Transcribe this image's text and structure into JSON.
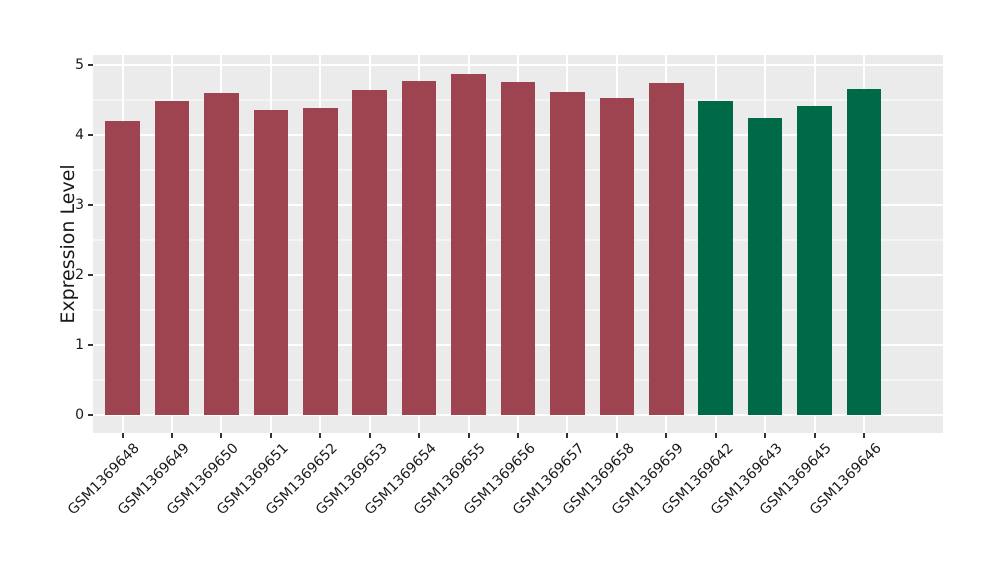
{
  "chart_data": {
    "type": "bar",
    "title": "",
    "xlabel": "",
    "ylabel": "Expression Level",
    "categories": [
      "GSM1369648",
      "GSM1369649",
      "GSM1369650",
      "GSM1369651",
      "GSM1369652",
      "GSM1369653",
      "GSM1369654",
      "GSM1369655",
      "GSM1369656",
      "GSM1369657",
      "GSM1369658",
      "GSM1369659",
      "GSM1369642",
      "GSM1369643",
      "GSM1369645",
      "GSM1369646"
    ],
    "values": [
      4.2,
      4.49,
      4.6,
      4.36,
      4.39,
      4.64,
      4.77,
      4.87,
      4.76,
      4.61,
      4.53,
      4.75,
      4.49,
      4.25,
      4.42,
      4.66
    ],
    "bar_groups": [
      "maroon",
      "maroon",
      "maroon",
      "maroon",
      "maroon",
      "maroon",
      "maroon",
      "maroon",
      "maroon",
      "maroon",
      "maroon",
      "maroon",
      "green",
      "green",
      "green",
      "green"
    ],
    "palette": {
      "maroon": "#9E4450",
      "green": "#006948"
    },
    "ylim": [
      0,
      5.15
    ],
    "yticks": [
      0,
      1,
      2,
      3,
      4,
      5
    ],
    "ytick_labels": [
      "0",
      "1",
      "2",
      "3",
      "4",
      "5"
    ],
    "minor_yticks": [
      0.5,
      1.5,
      2.5,
      3.5,
      4.5
    ],
    "grid": "on",
    "legend": "none",
    "panel_bg": "#EBEBEB",
    "grid_color": "#FFFFFF",
    "tick_color": "#333333",
    "text_color": "#1A1A1A"
  }
}
